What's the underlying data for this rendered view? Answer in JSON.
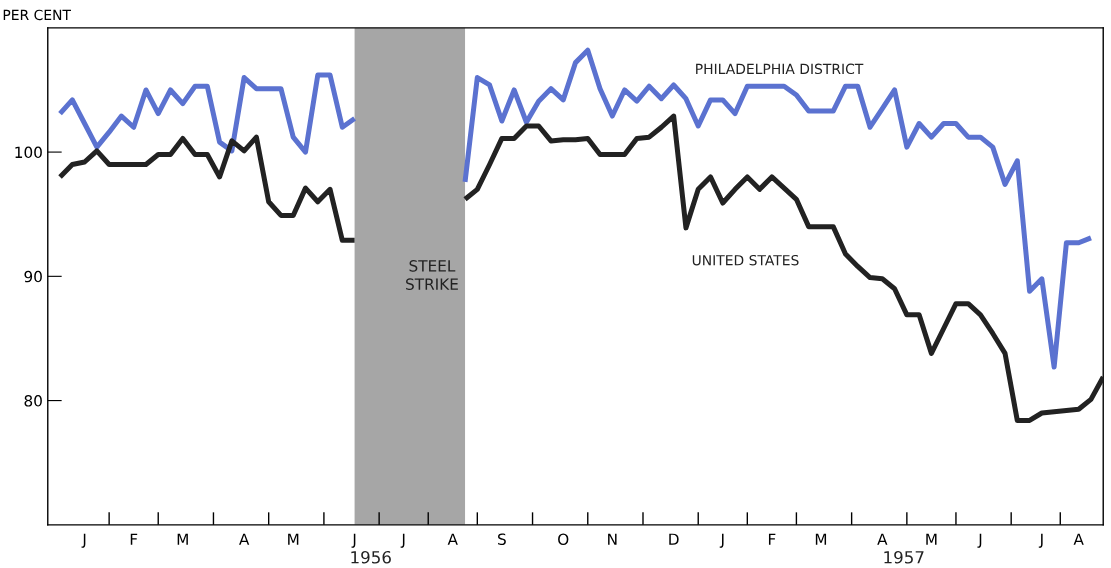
{
  "chart_data": {
    "type": "line",
    "ylabel": "PER CENT",
    "ylim": [
      70,
      110
    ],
    "yticks": [
      80,
      90,
      100
    ],
    "categories": [
      null,
      null,
      null,
      "J",
      null,
      null,
      null,
      "F",
      null,
      null,
      null,
      "M",
      null,
      null,
      null,
      null,
      "A",
      null,
      null,
      null,
      "M",
      null,
      null,
      null,
      null,
      "J",
      null,
      null,
      null,
      "J",
      null,
      null,
      null,
      "A",
      null,
      null,
      null,
      "S",
      null,
      null,
      null,
      null,
      "O",
      null,
      null,
      null,
      "N",
      null,
      null,
      null,
      null,
      "D",
      null,
      null,
      null,
      "J",
      null,
      null,
      null,
      "F",
      null,
      null,
      null,
      "M",
      null,
      null,
      null,
      null,
      "A",
      null,
      null,
      null,
      "M",
      null,
      null,
      null,
      "J",
      null,
      null,
      null,
      null,
      "J",
      null,
      null,
      "A",
      null,
      null
    ],
    "grid": false,
    "legend": false,
    "marker": "none",
    "line_style": "solid",
    "annotations": [
      "STEEL\nSTRIKE",
      "1956",
      "1957"
    ],
    "series": [
      {
        "name": "PHILADELPHIA DISTRICT",
        "color": "#5b72d0",
        "values": [
          null,
          103.1,
          104.2,
          102.3,
          100.4,
          101.6,
          102.9,
          102.0,
          105.0,
          103.1,
          105.0,
          103.9,
          105.3,
          105.3,
          100.8,
          100.1,
          106.0,
          105.1,
          105.1,
          105.1,
          101.2,
          100.0,
          106.2,
          106.2,
          102.0,
          102.7,
          null,
          null,
          null,
          null,
          null,
          null,
          null,
          null,
          97.6,
          106.0,
          105.4,
          102.5,
          105.0,
          102.4,
          104.1,
          105.1,
          104.2,
          107.2,
          108.2,
          105.1,
          102.9,
          105.0,
          104.1,
          105.3,
          104.3,
          105.4,
          104.3,
          102.1,
          104.2,
          104.2,
          103.1,
          105.3,
          105.3,
          105.3,
          105.3,
          104.6,
          103.3,
          103.3,
          103.3,
          105.3,
          105.3,
          102.0,
          103.5,
          105.0,
          100.4,
          102.3,
          101.2,
          102.3,
          102.3,
          101.2,
          101.2,
          100.4,
          97.4,
          99.3,
          88.8,
          89.8,
          82.7,
          92.7,
          92.7,
          93.1,
          null
        ]
      },
      {
        "name": "UNITED STATES",
        "color": "#222222",
        "values": [
          null,
          98.0,
          99.0,
          99.2,
          100.1,
          99.0,
          99.0,
          99.0,
          99.0,
          99.8,
          99.8,
          101.1,
          99.8,
          99.8,
          98.0,
          100.9,
          100.1,
          101.2,
          96.0,
          94.9,
          94.9,
          97.1,
          96.0,
          97.0,
          92.9,
          92.9,
          null,
          null,
          null,
          null,
          null,
          null,
          null,
          null,
          96.2,
          97.0,
          99.0,
          101.1,
          101.1,
          102.1,
          102.1,
          100.9,
          101.0,
          101.0,
          101.1,
          99.8,
          99.8,
          99.8,
          101.1,
          101.2,
          102.0,
          102.9,
          93.9,
          97.0,
          98.0,
          95.9,
          97.0,
          98.0,
          97.0,
          98.0,
          97.1,
          96.2,
          94.0,
          94.0,
          94.0,
          91.8,
          90.8,
          89.9,
          89.8,
          89.0,
          86.9,
          86.9,
          83.8,
          85.8,
          87.8,
          87.8,
          86.9,
          85.4,
          83.8,
          78.4,
          78.4,
          79.0,
          79.1,
          79.2,
          79.3,
          80.1,
          81.9
        ]
      }
    ]
  }
}
